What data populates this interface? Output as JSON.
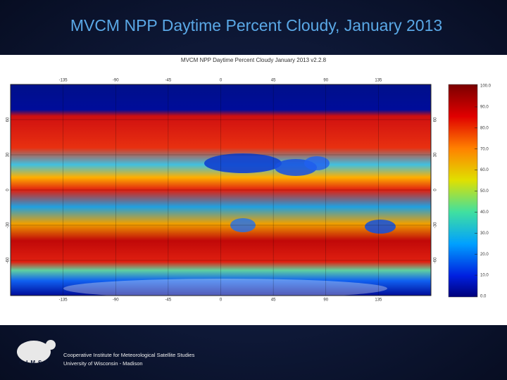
{
  "header": {
    "title": "MVCM NPP Daytime Percent Cloudy, January 2013"
  },
  "figure": {
    "title": "MVCM NPP Daytime Percent Cloudy January 2013 v2.2.8",
    "lon_ticks": [
      -135,
      -90,
      -45,
      0,
      45,
      90,
      135
    ],
    "lat_ticks": [
      60,
      30,
      0,
      -30,
      -60
    ],
    "colorbar": {
      "ticks": [
        {
          "value": 100,
          "label": "100.0"
        },
        {
          "value": 90,
          "label": "90.0"
        },
        {
          "value": 80,
          "label": "80.0"
        },
        {
          "value": 70,
          "label": "70.0"
        },
        {
          "value": 60,
          "label": "60.0"
        },
        {
          "value": 50,
          "label": "50.0"
        },
        {
          "value": 40,
          "label": "40.0"
        },
        {
          "value": 30,
          "label": "30.0"
        },
        {
          "value": 20,
          "label": "20.0"
        },
        {
          "value": 10,
          "label": "10.0"
        },
        {
          "value": 0,
          "label": "0.0"
        }
      ]
    }
  },
  "footer": {
    "logo": "CIMSS",
    "lines": [
      "Cooperative Institute for Meteorological Satellite Studies",
      "University of Wisconsin - Madison"
    ]
  }
}
